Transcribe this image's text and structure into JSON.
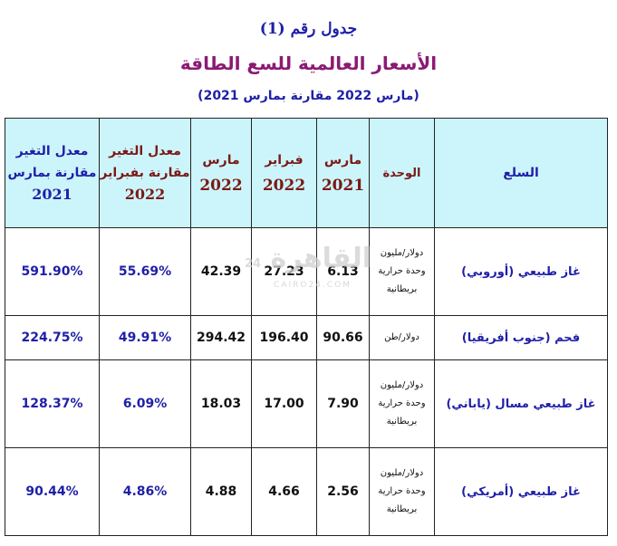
{
  "title": {
    "line1": "جدول رقم (1)",
    "line2": "الأسعار العالمية للسع الطاقة",
    "line3": "(مارس 2022 مقارنة بمارس 2021)"
  },
  "headers": {
    "rate_mar_l1": "معدل التغير",
    "rate_mar_l2": "مقارنة بمارس",
    "rate_mar_l3": "2021",
    "rate_feb_l1": "معدل التغير",
    "rate_feb_l2": "مقارنة بفبراير",
    "rate_feb_l3": "2022",
    "mar22_l1": "مارس",
    "mar22_l2": "2022",
    "feb22_l1": "فبراير",
    "feb22_l2": "2022",
    "mar21_l1": "مارس",
    "mar21_l2": "2021",
    "unit": "الوحدة",
    "goods": "السلع"
  },
  "rows": [
    {
      "rate_mar": "591.90%",
      "rate_feb": "55.69%",
      "mar22": "42.39",
      "feb22": "27.23",
      "mar21": "6.13",
      "unit_l1": "دولار/مليون",
      "unit_l2": "وحدة حرارية",
      "unit_l3": "بريطانية",
      "goods": "غاز طبيعي (أوروبي)"
    },
    {
      "rate_mar": "224.75%",
      "rate_feb": "49.91%",
      "mar22": "294.42",
      "feb22": "196.40",
      "mar21": "90.66",
      "unit_l1": "دولار/طن",
      "goods": "فحم (جنوب أفريقيا)"
    },
    {
      "rate_mar": "128.37%",
      "rate_feb": "6.09%",
      "mar22": "18.03",
      "feb22": "17.00",
      "mar21": "7.90",
      "unit_l1": "دولار/مليون",
      "unit_l2": "وحدة حرارية",
      "unit_l3": "بريطانية",
      "goods": "غاز طبيعي مسال (ياباني)"
    },
    {
      "rate_mar": "90.44%",
      "rate_feb": "4.86%",
      "mar22": "4.88",
      "feb22": "4.66",
      "mar21": "2.56",
      "unit_l1": "دولار/مليون",
      "unit_l2": "وحدة حرارية",
      "unit_l3": "بريطانية",
      "goods": "غاز طبيعي (أمريكي)"
    }
  ],
  "watermark": {
    "text": "القاهرة",
    "sub": "CAIRO24.COM",
    "num": "24"
  }
}
